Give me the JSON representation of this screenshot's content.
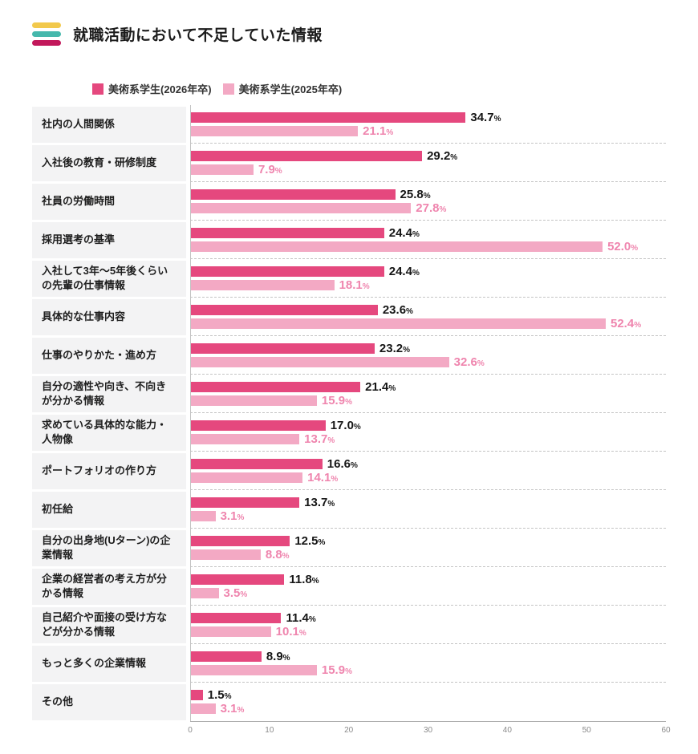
{
  "header": {
    "title": "就職活動において不足していた情報"
  },
  "logo": {
    "colors": [
      "#f2c94c",
      "#45b8ac",
      "#c2185b"
    ]
  },
  "legend": [
    {
      "label": "美術系学生(2026年卒)",
      "color": "#e5487e"
    },
    {
      "label": "美術系学生(2025年卒)",
      "color": "#f3a9c4"
    }
  ],
  "chart_data": {
    "type": "bar",
    "orientation": "horizontal",
    "title": "就職活動において不足していた情報",
    "xlabel": "",
    "ylabel": "",
    "xlim": [
      0,
      60
    ],
    "x_ticks": [
      0,
      10,
      20,
      30,
      40,
      50,
      60
    ],
    "grid": "dashed-row-separators",
    "legend_position": "top",
    "value_label_format": "percent-one-decimal",
    "categories": [
      "社内の人間関係",
      "入社後の教育・研修制度",
      "社員の労働時間",
      "採用選考の基準",
      "入社して3年〜5年後くらいの先輩の仕事情報",
      "具体的な仕事内容",
      "仕事のやりかた・進め方",
      "自分の適性や向き、不向きが分かる情報",
      "求めている具体的な能力・人物像",
      "ポートフォリオの作り方",
      "初任給",
      "自分の出身地(Uターン)の企業情報",
      "企業の経営者の考え方が分かる情報",
      "自己紹介や面接の受け方などが分かる情報",
      "もっと多くの企業情報",
      "その他"
    ],
    "series": [
      {
        "name": "美術系学生(2026年卒)",
        "key": "2026",
        "color": "#e5487e",
        "value_color": "#161616",
        "values": [
          34.7,
          29.2,
          25.8,
          24.4,
          24.4,
          23.6,
          23.2,
          21.4,
          17.0,
          16.6,
          13.7,
          12.5,
          11.8,
          11.4,
          8.9,
          1.5
        ]
      },
      {
        "name": "美術系学生(2025年卒)",
        "key": "2025",
        "color": "#f3a9c4",
        "value_color": "#ef85ae",
        "values": [
          21.1,
          7.9,
          27.8,
          52.0,
          18.1,
          52.4,
          32.6,
          15.9,
          13.7,
          14.1,
          3.1,
          8.8,
          3.5,
          10.1,
          15.9,
          3.1
        ]
      }
    ]
  }
}
